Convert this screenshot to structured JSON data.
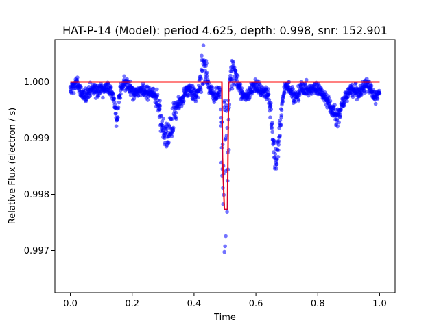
{
  "chart_data": {
    "type": "scatter",
    "title": "HAT-P-14 (Model): period 4.625, depth: 0.998, snr: 152.901",
    "xlabel": "Time",
    "ylabel": "Relative Flux (electron / s)",
    "xlim": [
      -0.05,
      1.05
    ],
    "ylim": [
      0.99625,
      1.00075
    ],
    "xticks": [
      0.0,
      0.2,
      0.4,
      0.6,
      0.8,
      1.0
    ],
    "xtick_labels": [
      "0.0",
      "0.2",
      "0.4",
      "0.6",
      "0.8",
      "1.0"
    ],
    "yticks": [
      0.997,
      0.998,
      0.999,
      1.0
    ],
    "ytick_labels": [
      "0.997",
      "0.998",
      "0.999",
      "1.000"
    ],
    "grid": false,
    "legend": "none",
    "colors": {
      "data": "#0000ff",
      "model": "#ff0000",
      "model_overlay": "#800080"
    },
    "series": [
      {
        "kind": "scatter",
        "color": "#0000ff",
        "baseline": 0.99985,
        "scatter_amplitude": 0.0002,
        "features": [
          {
            "x": 0.315,
            "depth": 0.0009,
            "width": 0.025
          },
          {
            "x": 0.665,
            "depth": 0.0014,
            "width": 0.012
          },
          {
            "x": 0.86,
            "depth": 0.0007,
            "width": 0.015
          },
          {
            "x": 0.15,
            "depth": 0.00045,
            "width": 0.005
          }
        ],
        "transit": {
          "center": 0.5,
          "ingress": 0.49,
          "egress": 0.51,
          "min": 0.99645
        },
        "spikes": [
          {
            "x": 0.43,
            "max": 1.00055
          },
          {
            "x": 0.525,
            "max": 1.00055
          }
        ]
      },
      {
        "kind": "line",
        "color": "#ff0000",
        "x": [
          0.0,
          0.49,
          0.492,
          0.498,
          0.508,
          0.512,
          1.0
        ],
        "values": [
          1.0,
          1.0,
          0.99865,
          0.99773,
          0.99773,
          1.0,
          1.0
        ]
      }
    ]
  }
}
